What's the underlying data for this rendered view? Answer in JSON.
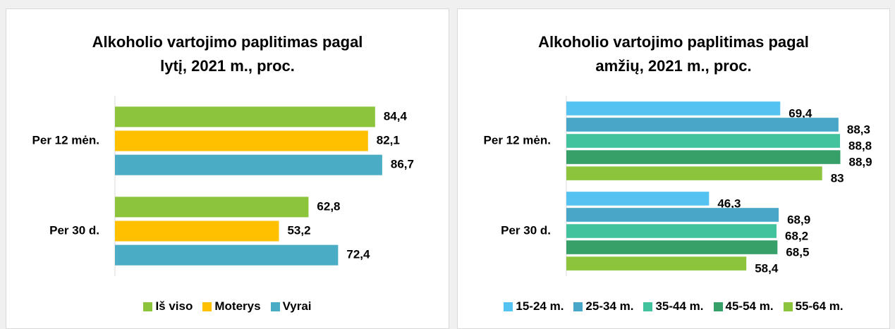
{
  "chart_data": [
    {
      "type": "bar",
      "orientation": "horizontal",
      "title": "Alkoholio vartojimo paplitimas pagal lytį, 2021 m., proc.",
      "categories": [
        "Per 12 mėn.",
        "Per 30 d."
      ],
      "xlim": [
        0,
        100
      ],
      "series": [
        {
          "name": "Iš viso",
          "color": "#8cc43c",
          "values": [
            84.4,
            62.8
          ],
          "value_labels": [
            "84,4",
            "62,8"
          ]
        },
        {
          "name": "Moterys",
          "color": "#ffc000",
          "values": [
            82.1,
            53.2
          ],
          "value_labels": [
            "82,1",
            "53,2"
          ]
        },
        {
          "name": "Vyrai",
          "color": "#4bacc6",
          "values": [
            86.7,
            72.4
          ],
          "value_labels": [
            "86,7",
            "72,4"
          ]
        }
      ]
    },
    {
      "type": "bar",
      "orientation": "horizontal",
      "title": "Alkoholio vartojimo paplitimas pagal amžių, 2021 m., proc.",
      "categories": [
        "Per 12 mėn.",
        "Per 30 d."
      ],
      "xlim": [
        0,
        100
      ],
      "series": [
        {
          "name": "15-24 m.",
          "color": "#54c3f1",
          "values": [
            69.4,
            46.3
          ],
          "value_labels": [
            "69,4",
            "46,3"
          ]
        },
        {
          "name": "25-34 m.",
          "color": "#48a7c9",
          "values": [
            88.3,
            68.9
          ],
          "value_labels": [
            "88,3",
            "68,9"
          ]
        },
        {
          "name": "35-44 m.",
          "color": "#42c29d",
          "values": [
            88.8,
            68.2
          ],
          "value_labels": [
            "88,8",
            "68,2"
          ]
        },
        {
          "name": "45-54 m.",
          "color": "#37a068",
          "values": [
            88.9,
            68.5
          ],
          "value_labels": [
            "88,9",
            "68,5"
          ]
        },
        {
          "name": "55-64 m.",
          "color": "#8cc43c",
          "values": [
            83,
            58.4
          ],
          "value_labels": [
            "83",
            "58,4"
          ]
        }
      ]
    }
  ]
}
